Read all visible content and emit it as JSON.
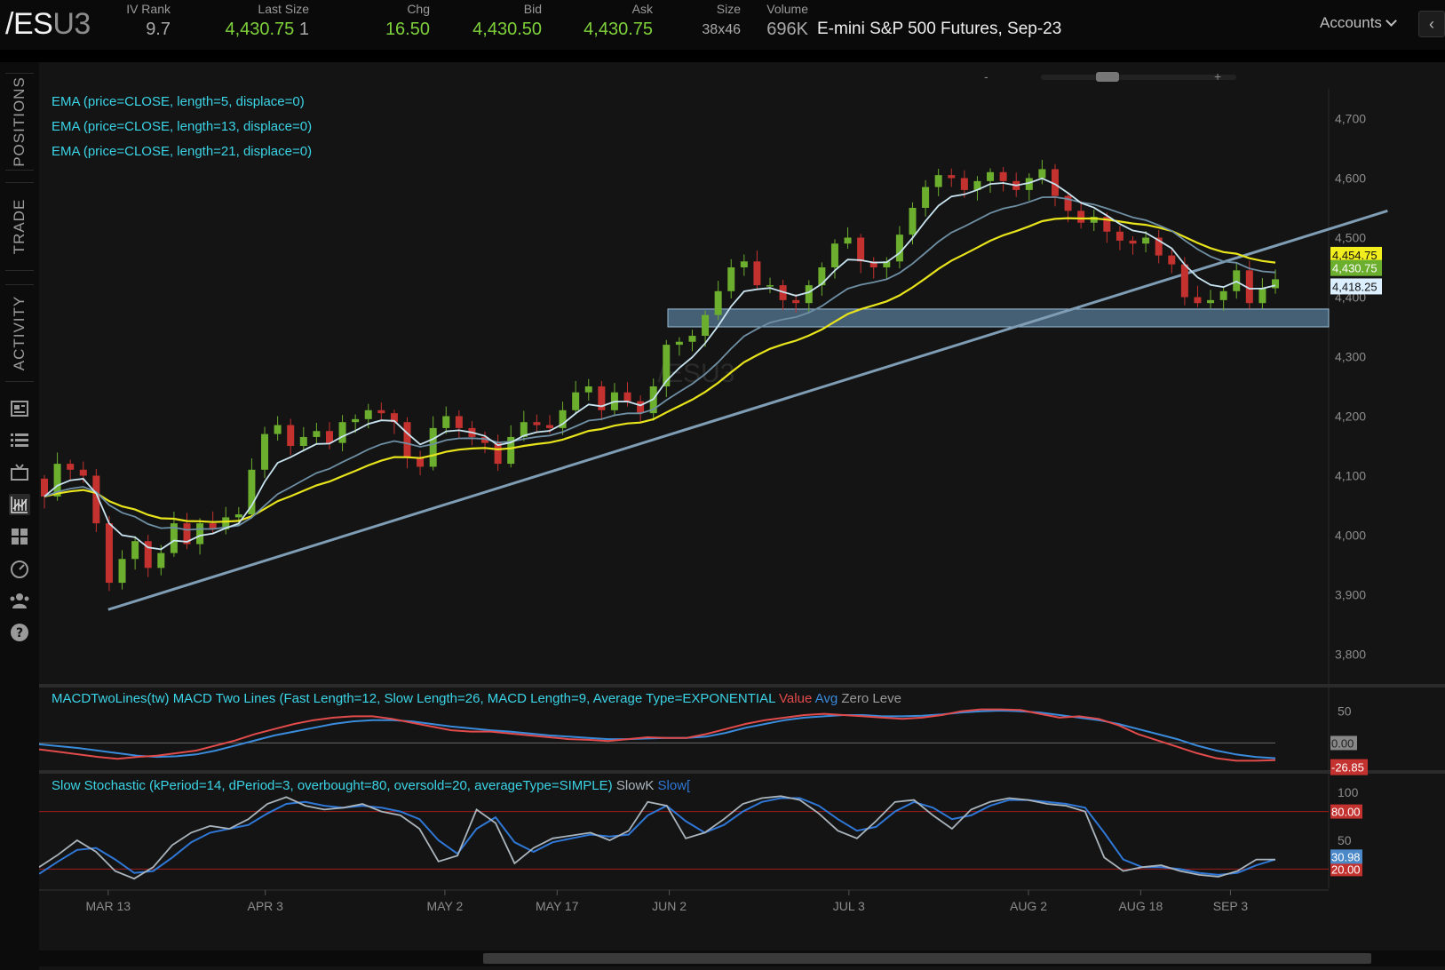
{
  "quote": {
    "symbol_main": "/ES",
    "symbol_suffix": "U3",
    "iv_rank_label": "IV Rank",
    "iv_rank": "9.7",
    "last_size_label": "Last Size",
    "last": "4,430.75",
    "last_size": "1",
    "chg_label": "Chg",
    "chg": "16.50",
    "bid_label": "Bid",
    "bid": "4,430.50",
    "ask_label": "Ask",
    "ask": "4,430.75",
    "size_label": "Size",
    "size": "38x46",
    "volume_label": "Volume",
    "volume": "696K",
    "description": "E-mini S&P 500 Futures, Sep-23"
  },
  "header": {
    "accounts_label": "Accounts",
    "collapse_glyph": "‹"
  },
  "sidebar": {
    "tabs": [
      "POSITIONS",
      "TRADE",
      "ACTIVITY"
    ],
    "icons": [
      "news-icon",
      "list-icon",
      "tv-icon",
      "chart-icon",
      "grid-icon",
      "gauge-icon",
      "community-icon",
      "help-icon"
    ],
    "active_icon": "chart-icon"
  },
  "chart_data": {
    "type": "candlestick",
    "watermark": "/ESU3",
    "zoom_minus": "-",
    "zoom_plus": "+",
    "studies": [
      "EMA (price=CLOSE, length=5, displace=0)",
      "EMA (price=CLOSE, length=13, displace=0)",
      "EMA (price=CLOSE, length=21, displace=0)"
    ],
    "price_axis": {
      "min": 3750,
      "max": 4750,
      "ticks": [
        "3,800",
        "3,900",
        "4,000",
        "4,100",
        "4,200",
        "4,300",
        "4,400",
        "4,500",
        "4,600",
        "4,700"
      ]
    },
    "price_badges": {
      "ema21": "4,454.75",
      "last": "4,430.75",
      "ema5": "4,418.25"
    },
    "support_zone": [
      4350,
      4380
    ],
    "trendline": [
      [
        3,
        3875
      ],
      [
        60,
        4545
      ]
    ],
    "x_labels": [
      "MAR 13",
      "APR 3",
      "MAY 2",
      "MAY 17",
      "JUN 2",
      "JUL 3",
      "AUG 2",
      "AUG 18",
      "SEP 3"
    ],
    "x_label_index": [
      3,
      10,
      18,
      23,
      28,
      36,
      44,
      49,
      53
    ],
    "closes": [
      4065,
      4120,
      4110,
      4100,
      4020,
      3920,
      3960,
      3990,
      3945,
      3970,
      4020,
      3985,
      4020,
      4010,
      4030,
      4035,
      4110,
      4170,
      4185,
      4150,
      4165,
      4175,
      4155,
      4190,
      4195,
      4210,
      4205,
      4190,
      4130,
      4115,
      4180,
      4200,
      4180,
      4165,
      4155,
      4120,
      4165,
      4190,
      4185,
      4180,
      4210,
      4240,
      4250,
      4210,
      4240,
      4225,
      4205,
      4250,
      4320,
      4325,
      4335,
      4370,
      4410,
      4450,
      4460,
      4420,
      4420,
      4395,
      4390,
      4420,
      4450,
      4490,
      4500,
      4460,
      4450,
      4460,
      4505,
      4550,
      4585,
      4605,
      4600,
      4580,
      4595,
      4610,
      4595,
      4580,
      4600,
      4615,
      4570,
      4545,
      4525,
      4535,
      4510,
      4495,
      4490,
      4500,
      4470,
      4455,
      4400,
      4390,
      4395,
      4410,
      4445,
      4390,
      4415,
      4430
    ],
    "ema": {
      "ema5": {
        "color": "#c8e4f0",
        "last": 4418
      },
      "ema13": {
        "color": "#6e8fa4",
        "last": 4440
      },
      "ema21": {
        "color": "#e8e41c",
        "last": 4455
      }
    },
    "macd": {
      "label": "MACDTwoLines(tw) MACD Two Lines (Fast Length=12, Slow Length=26, MACD Length=9, Average Type=EXPONENTIAL",
      "legend": [
        {
          "name": "Value",
          "color": "#e14b4b"
        },
        {
          "name": "Avg",
          "color": "#3a8bdc"
        },
        {
          "name": "Zero Leve",
          "color": "#9a9a9a"
        }
      ],
      "axis_tick": "50",
      "range": [
        -40,
        65
      ],
      "badges": {
        "zero": "0.00",
        "value": "-26.85"
      },
      "value": [
        -10,
        -14,
        -18,
        -22,
        -25,
        -22,
        -20,
        -16,
        -12,
        -4,
        4,
        14,
        22,
        30,
        36,
        40,
        42,
        42,
        38,
        32,
        26,
        20,
        18,
        18,
        15,
        12,
        9,
        6,
        5,
        3,
        6,
        9,
        8,
        8,
        14,
        22,
        30,
        36,
        40,
        44,
        46,
        44,
        42,
        40,
        38,
        40,
        44,
        50,
        53,
        53,
        52,
        46,
        40,
        42,
        38,
        28,
        14,
        4,
        -6,
        -16,
        -24,
        -28,
        -28,
        -27
      ],
      "avg": [
        -2,
        -5,
        -8,
        -12,
        -16,
        -20,
        -22,
        -21,
        -18,
        -12,
        -4,
        4,
        12,
        18,
        24,
        30,
        34,
        36,
        36,
        34,
        30,
        26,
        23,
        20,
        18,
        15,
        12,
        10,
        8,
        6,
        6,
        7,
        8,
        8,
        10,
        16,
        24,
        30,
        36,
        40,
        42,
        44,
        44,
        42,
        42,
        43,
        45,
        48,
        50,
        51,
        50,
        48,
        44,
        40,
        36,
        30,
        22,
        14,
        6,
        -4,
        -12,
        -18,
        -22,
        -24
      ]
    },
    "stoch": {
      "label": "Slow Stochastic (kPeriod=14, dPeriod=3, overbought=80, oversold=20, averageType=SIMPLE)",
      "legend": [
        {
          "name": "SlowK",
          "color": "#aab4bc"
        },
        {
          "name": "SlowD",
          "color": "#2f77d6"
        }
      ],
      "display_legend": [
        "SlowK",
        "Slow["
      ],
      "axis_ticks": [
        "100",
        "50"
      ],
      "overbought": 80,
      "oversold": 20,
      "badges": {
        "overbought": "80.00",
        "slow": "30.98",
        "oversold": "20.00"
      },
      "slowk": [
        22,
        35,
        50,
        38,
        18,
        10,
        22,
        45,
        58,
        65,
        62,
        72,
        88,
        95,
        86,
        82,
        84,
        88,
        80,
        76,
        62,
        28,
        34,
        82,
        68,
        26,
        42,
        52,
        55,
        58,
        50,
        60,
        90,
        86,
        52,
        58,
        72,
        88,
        94,
        96,
        92,
        78,
        60,
        52,
        70,
        90,
        92,
        76,
        62,
        82,
        90,
        94,
        92,
        88,
        86,
        80,
        32,
        18,
        22,
        24,
        18,
        14,
        12,
        18,
        30,
        30
      ],
      "slowd": [
        15,
        28,
        40,
        42,
        30,
        16,
        18,
        32,
        48,
        58,
        62,
        66,
        78,
        88,
        90,
        86,
        84,
        86,
        84,
        80,
        72,
        50,
        36,
        62,
        74,
        48,
        38,
        48,
        52,
        56,
        54,
        56,
        76,
        86,
        70,
        58,
        66,
        80,
        90,
        94,
        94,
        86,
        72,
        60,
        64,
        80,
        90,
        84,
        72,
        76,
        86,
        92,
        92,
        90,
        88,
        84,
        58,
        30,
        22,
        22,
        20,
        16,
        14,
        16,
        24,
        30
      ]
    }
  }
}
